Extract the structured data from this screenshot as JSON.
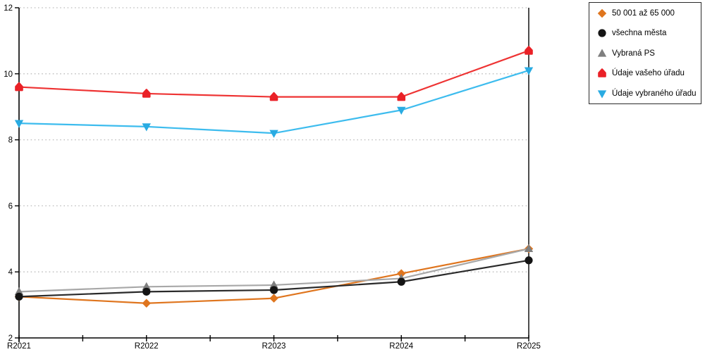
{
  "chart_data": {
    "type": "line",
    "title": "",
    "xlabel": "",
    "ylabel": "",
    "categories": [
      "R2021",
      "R2022",
      "R2023",
      "R2024",
      "R2025"
    ],
    "ylim": [
      2,
      12
    ],
    "yticks": [
      2,
      4,
      6,
      8,
      10,
      12
    ],
    "grid_y": [
      4,
      6,
      8,
      10,
      12
    ],
    "grid_style": "dotted",
    "legend_position": "top-right-outside",
    "axis_color": "#000000",
    "grid_color": "#bcbcbc",
    "series": [
      {
        "name": "50 001 až 65 000",
        "marker": "diamond",
        "color": "#df751e",
        "line_color": "#df751e",
        "values": [
          3.25,
          3.05,
          3.2,
          3.95,
          4.7
        ]
      },
      {
        "name": "všechna města",
        "marker": "circle",
        "color": "#141414",
        "line_color": "#2a2a2a",
        "values": [
          3.25,
          3.4,
          3.45,
          3.7,
          4.35
        ]
      },
      {
        "name": "Vybraná PS",
        "marker": "triangle-up",
        "color": "#7f7f7f",
        "line_color": "#a8a8a8",
        "values": [
          3.4,
          3.55,
          3.6,
          3.8,
          4.7
        ]
      },
      {
        "name": "Údaje vašeho úřadu",
        "marker": "house",
        "color": "#ea2127",
        "line_color": "#ee3333",
        "values": [
          9.6,
          9.4,
          9.3,
          9.3,
          10.7
        ]
      },
      {
        "name": "Údaje vybraného úřadu",
        "marker": "triangle-down",
        "color": "#29abe2",
        "line_color": "#3dbcee",
        "values": [
          8.5,
          8.4,
          8.2,
          8.9,
          10.1
        ]
      }
    ],
    "draw_order": [
      0,
      2,
      1,
      3,
      4
    ]
  }
}
